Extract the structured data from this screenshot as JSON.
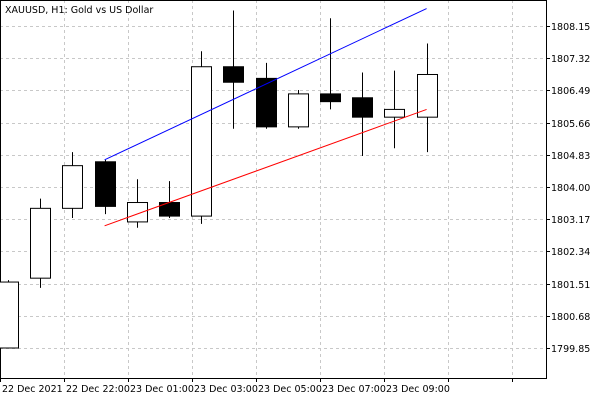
{
  "window": {
    "symbol_title": "XAUUSD, H1:  Gold vs US Dollar"
  },
  "chart_data": {
    "type": "candlestick",
    "title": "XAUUSD, H1:  Gold vs US Dollar",
    "grid": true,
    "ylim": [
      1799.3,
      1809.6
    ],
    "y_ticks": [
      "1808.15",
      "1807.32",
      "1806.49",
      "1805.66",
      "1804.83",
      "1804.00",
      "1803.17",
      "1802.34",
      "1801.51",
      "1800.68",
      "1799.85"
    ],
    "x_ticks": [
      "22 Dec 2021",
      "22 Dec 22:00",
      "23 Dec 01:00",
      "23 Dec 03:00",
      "23 Dec 05:00",
      "23 Dec 07:00",
      "23 Dec 09:00"
    ],
    "candles": [
      {
        "o": 1799.85,
        "h": 1801.6,
        "l": 1799.85,
        "c": 1801.55
      },
      {
        "o": 1801.65,
        "h": 1803.7,
        "l": 1801.4,
        "c": 1803.45
      },
      {
        "o": 1803.45,
        "h": 1804.9,
        "l": 1803.2,
        "c": 1804.55
      },
      {
        "o": 1804.65,
        "h": 1804.7,
        "l": 1803.3,
        "c": 1803.5
      },
      {
        "o": 1803.1,
        "h": 1804.2,
        "l": 1802.95,
        "c": 1803.6
      },
      {
        "o": 1803.6,
        "h": 1804.15,
        "l": 1803.2,
        "c": 1803.25
      },
      {
        "o": 1803.25,
        "h": 1807.5,
        "l": 1803.05,
        "c": 1807.1
      },
      {
        "o": 1807.1,
        "h": 1808.55,
        "l": 1805.5,
        "c": 1806.7
      },
      {
        "o": 1806.8,
        "h": 1807.2,
        "l": 1805.5,
        "c": 1805.55
      },
      {
        "o": 1805.55,
        "h": 1806.5,
        "l": 1805.5,
        "c": 1806.4
      },
      {
        "o": 1806.4,
        "h": 1808.35,
        "l": 1806.0,
        "c": 1806.2
      },
      {
        "o": 1806.3,
        "h": 1806.95,
        "l": 1804.8,
        "c": 1805.8
      },
      {
        "o": 1805.8,
        "h": 1807.0,
        "l": 1805.0,
        "c": 1806.0
      },
      {
        "o": 1805.8,
        "h": 1807.7,
        "l": 1804.9,
        "c": 1806.9
      }
    ],
    "trendlines": [
      {
        "name": "upper",
        "color": "#0000ff",
        "from": {
          "index": 3,
          "price": 1804.7
        },
        "to": {
          "index": 13,
          "price": 1808.6
        }
      },
      {
        "name": "lower",
        "color": "#ff0000",
        "from": {
          "index": 3,
          "price": 1803.0
        },
        "to": {
          "index": 13,
          "price": 1806.0
        }
      }
    ]
  }
}
